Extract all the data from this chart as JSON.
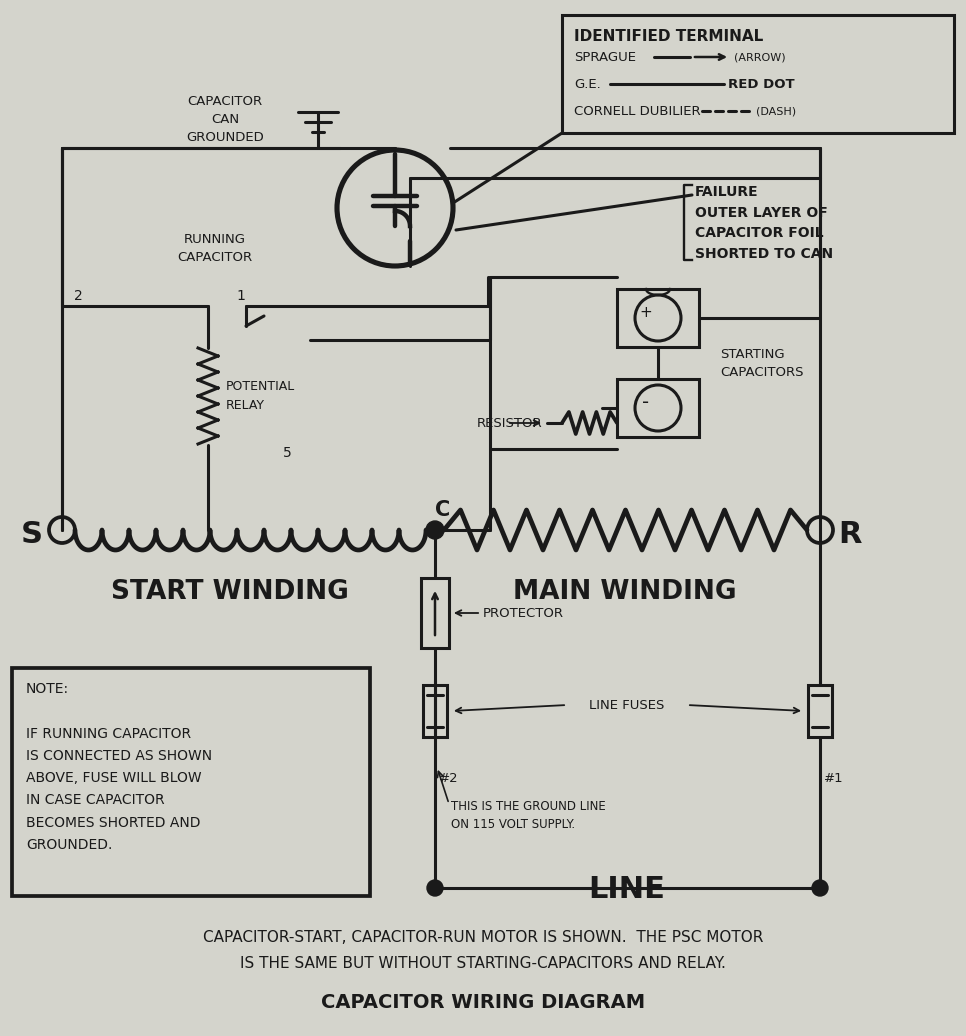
{
  "bg_color": "#d4d4cc",
  "line_color": "#1a1a1a",
  "title": "CAPACITOR WIRING DIAGRAM",
  "caption1": "CAPACITOR-START, CAPACITOR-RUN MOTOR IS SHOWN.  THE PSC MOTOR",
  "caption2": "IS THE SAME BUT WITHOUT STARTING-CAPACITORS AND RELAY.",
  "note_text": "NOTE:\n\nIF RUNNING CAPACITOR\nIS CONNECTED AS SHOWN\nABOVE, FUSE WILL BLOW\nIN CASE CAPACITOR\nBECOMES SHORTED AND\nGROUNDED.",
  "identified_terminal_title": "IDENTIFIED TERMINAL",
  "sprague_text": "SPRAGUE",
  "ge_text": "G.E.",
  "cornell_text": "CORNELL DUBILIER",
  "arrow_text": "(ARROW)",
  "red_dot_text": "RED DOT",
  "dash_text": "(DASH)",
  "failure_text": "FAILURE\nOUTER LAYER OF\nCAPACITOR FOIL\nSHORTED TO CAN",
  "capacitor_can_text": "CAPACITOR\nCAN\nGROUNDED",
  "running_cap_text": "RUNNING\nCAPACITOR",
  "starting_cap_text": "STARTING\nCAPACITORS",
  "potential_relay_text": "POTENTIAL\nRELAY",
  "relay_5": "5",
  "resistor_text": "RESISTOR",
  "start_winding_text": "START WINDING",
  "main_winding_text": "MAIN WINDING",
  "protector_text": "PROTECTOR",
  "line_fuses_text": "LINE FUSES",
  "line_text": "LINE",
  "ground_line_text": "THIS IS THE GROUND LINE\nON 115 VOLT SUPPLY.",
  "label_s": "S",
  "label_c": "C",
  "label_r": "R",
  "label_1": "1",
  "label_2": "2",
  "label_fuse2": "#2",
  "label_fuse1": "#1"
}
